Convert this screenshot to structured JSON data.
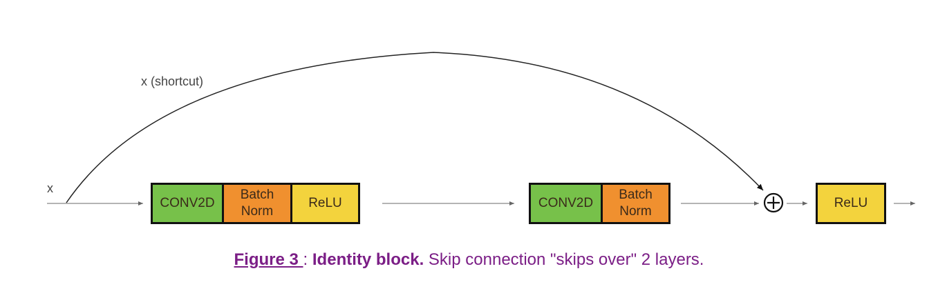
{
  "diagram": {
    "input_label": "x",
    "shortcut_label": "x (shortcut)",
    "block1": {
      "conv": "CONV2D",
      "bn_line1": "Batch",
      "bn_line2": "Norm",
      "relu": "ReLU"
    },
    "block2": {
      "conv": "CONV2D",
      "bn_line1": "Batch",
      "bn_line2": "Norm"
    },
    "final_relu": "ReLU",
    "add_symbol": "⊕",
    "colors": {
      "conv": "#77c14a",
      "batch_norm": "#f0902f",
      "relu": "#f3d33d",
      "caption": "#7b1e86"
    }
  },
  "caption": {
    "figure_label": "Figure 3 ",
    "separator": ": ",
    "title": "Identity block.",
    "text": " Skip connection \"skips over\" 2 layers."
  }
}
